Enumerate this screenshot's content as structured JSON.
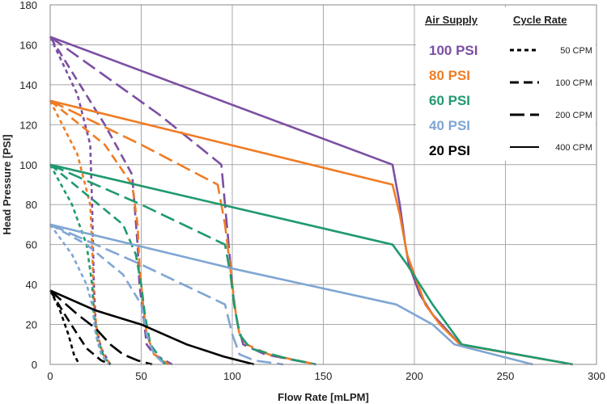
{
  "chart_data": {
    "type": "line",
    "title": "",
    "xlabel": "Flow Rate [mLPM]",
    "ylabel": "Head Pressure [PSI]",
    "xlim": [
      0,
      300
    ],
    "ylim": [
      0,
      180
    ],
    "xticks": [
      0,
      50,
      100,
      150,
      200,
      250,
      300
    ],
    "yticks": [
      0,
      20,
      40,
      60,
      80,
      100,
      120,
      140,
      160,
      180
    ],
    "grid": true,
    "legend_position": "top-right",
    "legend": {
      "air_supply_title": "Air Supply",
      "cycle_rate_title": "Cycle Rate",
      "air_supply": [
        {
          "label": "100 PSI",
          "color": "#7c4fa3"
        },
        {
          "label": "80 PSI",
          "color": "#f07c24"
        },
        {
          "label": "60 PSI",
          "color": "#1f9a6e"
        },
        {
          "label": "40 PSI",
          "color": "#7fa6d3"
        },
        {
          "label": "20 PSI",
          "color": "#000000"
        }
      ],
      "cycle_rate": [
        {
          "label": "50 CPM",
          "dash": "5,4"
        },
        {
          "label": "100 CPM",
          "dash": "11,6"
        },
        {
          "label": "200 CPM",
          "dash": "18,7"
        },
        {
          "label": "400 CPM",
          "dash": ""
        }
      ]
    },
    "series": [
      {
        "air": "100 PSI",
        "cycle": "50 CPM",
        "color": "#7c4fa3",
        "dash": "5,4",
        "points": [
          [
            0,
            164
          ],
          [
            15,
            135
          ],
          [
            22,
            110
          ],
          [
            23,
            80
          ],
          [
            24,
            40
          ],
          [
            25,
            20
          ],
          [
            28,
            8
          ],
          [
            33,
            0
          ]
        ]
      },
      {
        "air": "100 PSI",
        "cycle": "100 CPM",
        "color": "#7c4fa3",
        "dash": "11,6",
        "points": [
          [
            0,
            164
          ],
          [
            30,
            120
          ],
          [
            45,
            95
          ],
          [
            48,
            60
          ],
          [
            49,
            40
          ],
          [
            51,
            25
          ],
          [
            53,
            10
          ],
          [
            57,
            5
          ],
          [
            67,
            0
          ]
        ]
      },
      {
        "air": "100 PSI",
        "cycle": "200 CPM",
        "color": "#7c4fa3",
        "dash": "18,7",
        "points": [
          [
            0,
            164
          ],
          [
            60,
            125
          ],
          [
            94,
            100
          ],
          [
            96,
            80
          ],
          [
            99,
            50
          ],
          [
            100,
            40
          ],
          [
            101,
            30
          ],
          [
            103,
            20
          ],
          [
            106,
            10
          ],
          [
            118,
            5
          ],
          [
            146,
            0
          ]
        ]
      },
      {
        "air": "100 PSI",
        "cycle": "400 CPM",
        "color": "#7c4fa3",
        "dash": "",
        "points": [
          [
            0,
            164
          ],
          [
            188,
            100
          ],
          [
            192,
            80
          ],
          [
            195,
            60
          ],
          [
            197,
            50
          ],
          [
            203,
            35
          ],
          [
            210,
            25
          ],
          [
            225,
            10
          ],
          [
            287,
            0
          ]
        ]
      },
      {
        "air": "80 PSI",
        "cycle": "50 CPM",
        "color": "#f07c24",
        "dash": "5,4",
        "points": [
          [
            0,
            132
          ],
          [
            15,
            105
          ],
          [
            22,
            80
          ],
          [
            23,
            60
          ],
          [
            24,
            30
          ],
          [
            26,
            15
          ],
          [
            29,
            5
          ],
          [
            33,
            0
          ]
        ]
      },
      {
        "air": "80 PSI",
        "cycle": "100 CPM",
        "color": "#f07c24",
        "dash": "11,6",
        "points": [
          [
            0,
            132
          ],
          [
            30,
            110
          ],
          [
            45,
            90
          ],
          [
            48,
            70
          ],
          [
            49,
            50
          ],
          [
            51,
            30
          ],
          [
            53,
            15
          ],
          [
            57,
            5
          ],
          [
            65,
            0
          ]
        ]
      },
      {
        "air": "80 PSI",
        "cycle": "200 CPM",
        "color": "#f07c24",
        "dash": "18,7",
        "points": [
          [
            0,
            132
          ],
          [
            50,
            110
          ],
          [
            92,
            90
          ],
          [
            96,
            70
          ],
          [
            100,
            40
          ],
          [
            102,
            25
          ],
          [
            104,
            15
          ],
          [
            108,
            10
          ],
          [
            120,
            5
          ],
          [
            146,
            0
          ]
        ]
      },
      {
        "air": "80 PSI",
        "cycle": "400 CPM",
        "color": "#f07c24",
        "dash": "",
        "points": [
          [
            0,
            132
          ],
          [
            188,
            90
          ],
          [
            192,
            75
          ],
          [
            196,
            55
          ],
          [
            200,
            45
          ],
          [
            206,
            30
          ],
          [
            214,
            20
          ],
          [
            225,
            10
          ],
          [
            287,
            0
          ]
        ]
      },
      {
        "air": "60 PSI",
        "cycle": "50 CPM",
        "color": "#1f9a6e",
        "dash": "5,4",
        "points": [
          [
            0,
            100
          ],
          [
            12,
            80
          ],
          [
            20,
            60
          ],
          [
            23,
            40
          ],
          [
            24,
            25
          ],
          [
            26,
            12
          ],
          [
            30,
            3
          ],
          [
            33,
            0
          ]
        ]
      },
      {
        "air": "60 PSI",
        "cycle": "100 CPM",
        "color": "#1f9a6e",
        "dash": "11,6",
        "points": [
          [
            0,
            100
          ],
          [
            20,
            85
          ],
          [
            40,
            70
          ],
          [
            47,
            55
          ],
          [
            50,
            40
          ],
          [
            52,
            25
          ],
          [
            55,
            10
          ],
          [
            63,
            0
          ]
        ]
      },
      {
        "air": "60 PSI",
        "cycle": "200 CPM",
        "color": "#1f9a6e",
        "dash": "18,7",
        "points": [
          [
            0,
            100
          ],
          [
            50,
            80
          ],
          [
            96,
            60
          ],
          [
            99,
            45
          ],
          [
            101,
            30
          ],
          [
            104,
            15
          ],
          [
            110,
            8
          ],
          [
            130,
            3
          ],
          [
            146,
            0
          ]
        ]
      },
      {
        "air": "60 PSI",
        "cycle": "400 CPM",
        "color": "#1f9a6e",
        "dash": "",
        "points": [
          [
            0,
            100
          ],
          [
            188,
            60
          ],
          [
            196,
            50
          ],
          [
            203,
            40
          ],
          [
            210,
            30
          ],
          [
            218,
            20
          ],
          [
            226,
            10
          ],
          [
            287,
            0
          ]
        ]
      },
      {
        "air": "40 PSI",
        "cycle": "50 CPM",
        "color": "#7fa6d3",
        "dash": "5,4",
        "points": [
          [
            0,
            70
          ],
          [
            12,
            55
          ],
          [
            20,
            40
          ],
          [
            23,
            30
          ],
          [
            25,
            15
          ],
          [
            28,
            5
          ],
          [
            32,
            0
          ]
        ]
      },
      {
        "air": "40 PSI",
        "cycle": "100 CPM",
        "color": "#7fa6d3",
        "dash": "11,6",
        "points": [
          [
            0,
            70
          ],
          [
            20,
            60
          ],
          [
            40,
            45
          ],
          [
            50,
            30
          ],
          [
            53,
            15
          ],
          [
            57,
            5
          ],
          [
            63,
            0
          ]
        ]
      },
      {
        "air": "40 PSI",
        "cycle": "200 CPM",
        "color": "#7fa6d3",
        "dash": "18,7",
        "points": [
          [
            0,
            70
          ],
          [
            50,
            50
          ],
          [
            96,
            30
          ],
          [
            100,
            15
          ],
          [
            104,
            5
          ],
          [
            112,
            2
          ],
          [
            128,
            0
          ]
        ]
      },
      {
        "air": "40 PSI",
        "cycle": "400 CPM",
        "color": "#7fa6d3",
        "dash": "",
        "points": [
          [
            0,
            70
          ],
          [
            100,
            48
          ],
          [
            190,
            30
          ],
          [
            210,
            20
          ],
          [
            222,
            10
          ],
          [
            265,
            0
          ]
        ]
      },
      {
        "air": "20 PSI",
        "cycle": "50 CPM",
        "color": "#000000",
        "dash": "5,4",
        "points": [
          [
            0,
            37
          ],
          [
            5,
            28
          ],
          [
            10,
            15
          ],
          [
            13,
            5
          ],
          [
            16,
            0
          ]
        ]
      },
      {
        "air": "20 PSI",
        "cycle": "100 CPM",
        "color": "#000000",
        "dash": "11,6",
        "points": [
          [
            0,
            37
          ],
          [
            8,
            25
          ],
          [
            15,
            15
          ],
          [
            20,
            8
          ],
          [
            28,
            2
          ],
          [
            33,
            0
          ]
        ]
      },
      {
        "air": "20 PSI",
        "cycle": "200 CPM",
        "color": "#000000",
        "dash": "18,7",
        "points": [
          [
            0,
            37
          ],
          [
            15,
            25
          ],
          [
            25,
            18
          ],
          [
            33,
            10
          ],
          [
            40,
            5
          ],
          [
            48,
            2
          ],
          [
            56,
            0
          ]
        ]
      },
      {
        "air": "20 PSI",
        "cycle": "400 CPM",
        "color": "#000000",
        "dash": "",
        "points": [
          [
            0,
            37
          ],
          [
            25,
            27
          ],
          [
            50,
            20
          ],
          [
            75,
            10
          ],
          [
            95,
            4
          ],
          [
            112,
            0
          ]
        ]
      }
    ]
  }
}
